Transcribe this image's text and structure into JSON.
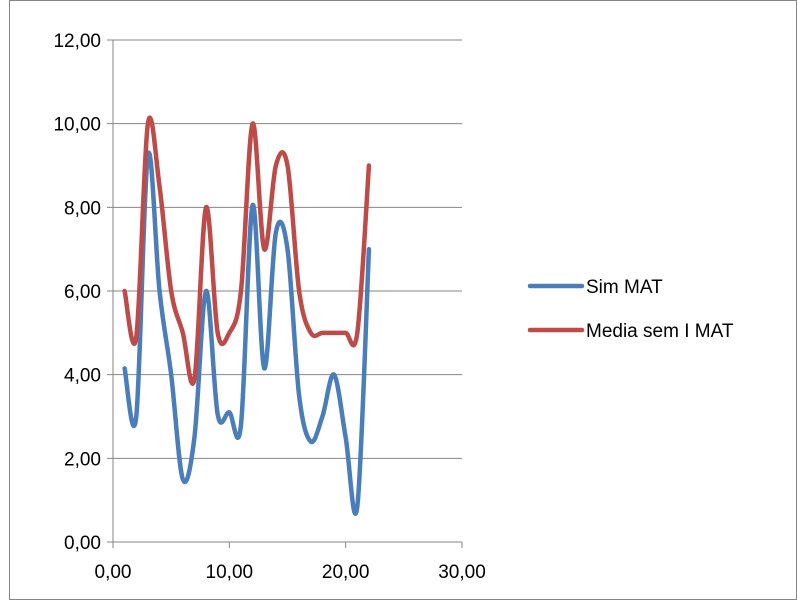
{
  "chart_data": {
    "type": "line",
    "smooth": true,
    "title": "",
    "xlabel": "",
    "ylabel": "",
    "xlim": [
      0,
      30
    ],
    "ylim": [
      0,
      12
    ],
    "x_ticks": [
      "0,00",
      "10,00",
      "20,00",
      "30,00"
    ],
    "y_ticks": [
      "0,00",
      "2,00",
      "4,00",
      "6,00",
      "8,00",
      "10,00",
      "12,00"
    ],
    "grid": "horizontal",
    "legend_position": "right",
    "x": [
      1,
      2,
      3,
      4,
      5,
      6,
      7,
      8,
      9,
      10,
      11,
      12,
      13,
      14,
      15,
      16,
      17,
      18,
      19,
      20,
      21,
      22
    ],
    "series": [
      {
        "name": "Sim MAT",
        "color": "#4a7ebb",
        "values": [
          4.15,
          3.0,
          9.25,
          6.0,
          4.0,
          1.5,
          2.5,
          6.0,
          3.05,
          3.1,
          2.8,
          8.05,
          4.15,
          7.4,
          7.0,
          3.5,
          2.4,
          3.0,
          4.0,
          2.5,
          0.85,
          7.0
        ]
      },
      {
        "name": "Media sem I MAT",
        "color": "#be4b48",
        "values": [
          6.0,
          4.9,
          10.0,
          8.5,
          6.0,
          5.0,
          3.9,
          8.0,
          5.0,
          5.0,
          6.0,
          10.0,
          7.0,
          9.0,
          9.0,
          6.0,
          5.0,
          5.0,
          5.0,
          5.0,
          5.0,
          9.0
        ]
      }
    ]
  }
}
